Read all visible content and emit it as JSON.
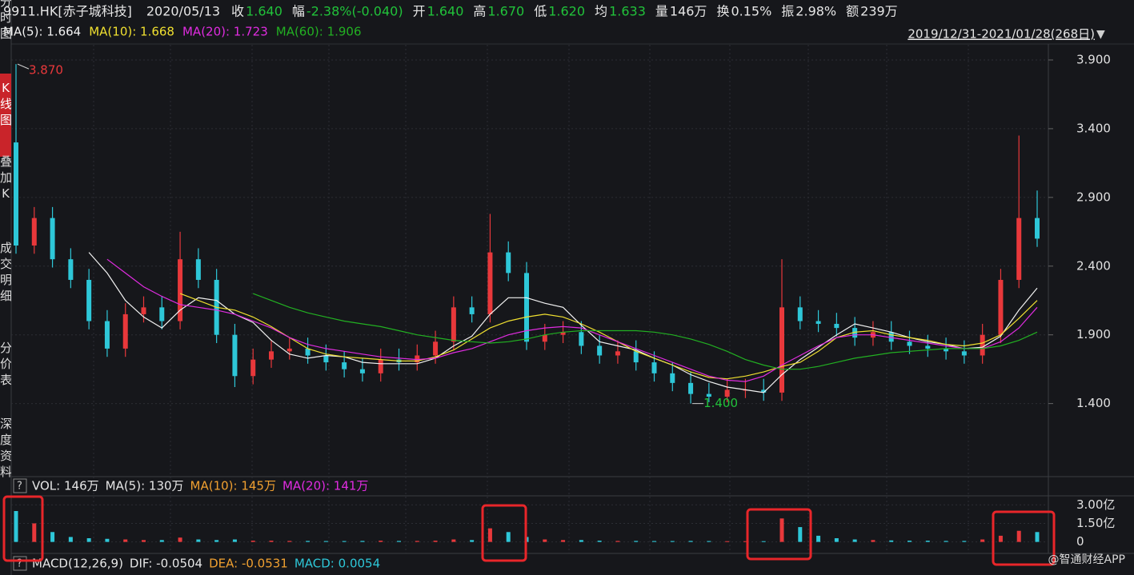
{
  "header": {
    "symbol": "9911.HK[赤子城科技]",
    "date": "2020/05/13",
    "quote": [
      {
        "label": "收",
        "value": "1.640",
        "color": "#21c23a"
      },
      {
        "label": "幅",
        "value": "-2.38%(-0.040)",
        "color": "#21c23a"
      },
      {
        "label": "开",
        "value": "1.640",
        "color": "#21c23a"
      },
      {
        "label": "高",
        "value": "1.670",
        "color": "#21c23a"
      },
      {
        "label": "低",
        "value": "1.620",
        "color": "#21c23a"
      },
      {
        "label": "均",
        "value": "1.633",
        "color": "#21c23a"
      },
      {
        "label": "量",
        "value": "146万",
        "color": "#e6e6e6"
      },
      {
        "label": "换",
        "value": "0.15%",
        "color": "#e6e6e6"
      },
      {
        "label": "振",
        "value": "2.98%",
        "color": "#e6e6e6"
      },
      {
        "label": "额",
        "value": "239万",
        "color": "#e6e6e6"
      }
    ],
    "range": "2019/12/31-2021/01/28(268日)",
    "range_arrow": "▼"
  },
  "sidebar": [
    "分时图",
    "K线图",
    "叠加K",
    "成交明细",
    "分价表",
    "深度资料"
  ],
  "help": "?",
  "watermark": "@智通财经APP",
  "chart_data": [
    {
      "type": "candlestick",
      "up_color": "#e8383b",
      "down_color": "#2ec7d8",
      "open": [
        3.3,
        2.55,
        2.75,
        2.45,
        2.3,
        2.0,
        1.8,
        2.05,
        2.1,
        2.0,
        2.45,
        2.3,
        1.9,
        1.6,
        1.72,
        1.78,
        1.8,
        1.75,
        1.7,
        1.65,
        1.62,
        1.72,
        1.7,
        1.75,
        1.85,
        2.1,
        2.05,
        2.5,
        2.35,
        1.85,
        1.9,
        1.92,
        1.82,
        1.75,
        1.78,
        1.7,
        1.62,
        1.55,
        1.47,
        1.45,
        1.5,
        1.5,
        1.48,
        2.1,
        2.0,
        1.98,
        1.95,
        1.88,
        1.92,
        1.85,
        1.82,
        1.8,
        1.78,
        1.75,
        1.9,
        2.3,
        2.75
      ],
      "high": [
        3.87,
        2.83,
        2.83,
        2.53,
        2.38,
        2.08,
        2.13,
        2.18,
        2.18,
        2.65,
        2.53,
        2.38,
        1.98,
        1.8,
        1.86,
        1.88,
        1.88,
        1.83,
        1.78,
        1.73,
        1.8,
        1.8,
        1.83,
        1.93,
        2.18,
        2.18,
        2.78,
        2.58,
        2.43,
        1.98,
        2.0,
        2.0,
        1.9,
        1.86,
        1.86,
        1.78,
        1.7,
        1.63,
        1.55,
        1.58,
        1.58,
        1.58,
        2.45,
        2.18,
        2.08,
        2.06,
        2.03,
        2.0,
        2.0,
        1.93,
        1.9,
        1.88,
        1.86,
        1.98,
        2.38,
        3.35,
        2.95
      ],
      "low": [
        2.49,
        2.49,
        2.39,
        2.24,
        1.94,
        1.74,
        1.74,
        1.99,
        1.94,
        1.94,
        2.24,
        1.84,
        1.52,
        1.54,
        1.66,
        1.72,
        1.69,
        1.64,
        1.59,
        1.56,
        1.56,
        1.64,
        1.64,
        1.69,
        1.79,
        1.99,
        1.99,
        2.29,
        1.79,
        1.79,
        1.84,
        1.76,
        1.69,
        1.69,
        1.64,
        1.56,
        1.49,
        1.4,
        1.41,
        1.41,
        1.44,
        1.42,
        1.42,
        1.94,
        1.92,
        1.89,
        1.82,
        1.82,
        1.79,
        1.76,
        1.74,
        1.72,
        1.69,
        1.69,
        1.84,
        2.24,
        2.54
      ],
      "close": [
        2.55,
        2.75,
        2.45,
        2.3,
        2.0,
        1.8,
        2.05,
        2.1,
        2.0,
        2.45,
        2.3,
        1.9,
        1.6,
        1.72,
        1.78,
        1.8,
        1.75,
        1.7,
        1.65,
        1.62,
        1.72,
        1.7,
        1.75,
        1.85,
        2.1,
        2.05,
        2.5,
        2.35,
        1.85,
        1.9,
        1.92,
        1.82,
        1.75,
        1.78,
        1.7,
        1.62,
        1.55,
        1.47,
        1.45,
        1.5,
        1.5,
        1.48,
        2.1,
        2.0,
        1.98,
        1.95,
        1.88,
        1.92,
        1.85,
        1.82,
        1.8,
        1.78,
        1.75,
        1.9,
        2.3,
        2.75,
        2.6
      ],
      "series": [
        {
          "name": "MA(5): 1.664",
          "color": "#f2f2f2",
          "values": [
            null,
            null,
            null,
            null,
            2.5,
            2.35,
            2.15,
            2.03,
            1.95,
            2.08,
            2.17,
            2.15,
            2.05,
            1.99,
            1.86,
            1.76,
            1.73,
            1.75,
            1.74,
            1.7,
            1.69,
            1.69,
            1.69,
            1.73,
            1.82,
            1.89,
            2.05,
            2.17,
            2.17,
            2.13,
            2.1,
            1.97,
            1.85,
            1.82,
            1.79,
            1.73,
            1.68,
            1.61,
            1.56,
            1.52,
            1.5,
            1.48,
            1.61,
            1.72,
            1.81,
            1.9,
            1.98,
            1.95,
            1.92,
            1.88,
            1.85,
            1.83,
            1.8,
            1.81,
            1.89,
            2.08,
            2.24
          ]
        },
        {
          "name": "MA(10): 1.668",
          "color": "#f0e030",
          "values": [
            null,
            null,
            null,
            null,
            null,
            null,
            null,
            null,
            null,
            2.2,
            2.15,
            2.1,
            2.08,
            2.03,
            1.96,
            1.88,
            1.8,
            1.76,
            1.74,
            1.73,
            1.72,
            1.71,
            1.71,
            1.74,
            1.79,
            1.87,
            1.95,
            2.0,
            2.03,
            2.05,
            2.03,
            1.98,
            1.92,
            1.85,
            1.78,
            1.73,
            1.68,
            1.63,
            1.59,
            1.58,
            1.6,
            1.63,
            1.67,
            1.7,
            1.78,
            1.88,
            1.92,
            1.93,
            1.9,
            1.88,
            1.86,
            1.83,
            1.82,
            1.84,
            1.9,
            2.02,
            2.15
          ]
        },
        {
          "name": "MA(20): 1.723",
          "color": "#e02ce0",
          "values": [
            null,
            null,
            null,
            null,
            null,
            2.45,
            2.35,
            2.25,
            2.18,
            2.12,
            2.1,
            2.08,
            2.05,
            2.0,
            1.95,
            1.88,
            1.83,
            1.8,
            1.78,
            1.76,
            1.74,
            1.73,
            1.72,
            1.73,
            1.77,
            1.8,
            1.85,
            1.9,
            1.93,
            1.95,
            1.96,
            1.95,
            1.9,
            1.85,
            1.8,
            1.75,
            1.7,
            1.65,
            1.6,
            1.57,
            1.56,
            1.6,
            1.68,
            1.75,
            1.82,
            1.88,
            1.9,
            1.9,
            1.88,
            1.86,
            1.84,
            1.82,
            1.8,
            1.8,
            1.85,
            1.95,
            2.1
          ]
        },
        {
          "name": "MA(60): 1.906",
          "color": "#22b022",
          "values": [
            null,
            null,
            null,
            null,
            null,
            null,
            null,
            null,
            null,
            null,
            null,
            null,
            null,
            2.2,
            2.15,
            2.1,
            2.06,
            2.03,
            2.0,
            1.98,
            1.96,
            1.93,
            1.9,
            1.88,
            1.86,
            1.85,
            1.84,
            1.85,
            1.87,
            1.9,
            1.92,
            1.93,
            1.93,
            1.93,
            1.93,
            1.92,
            1.9,
            1.87,
            1.83,
            1.78,
            1.72,
            1.68,
            1.65,
            1.65,
            1.67,
            1.7,
            1.73,
            1.75,
            1.77,
            1.78,
            1.79,
            1.8,
            1.8,
            1.8,
            1.82,
            1.86,
            1.92
          ]
        }
      ],
      "annotations": [
        {
          "value": 3.87,
          "label": "3.870",
          "color": "#e8383b"
        },
        {
          "value": 1.4,
          "label": "1.400",
          "color": "#21c23a"
        }
      ],
      "ylim": [
        0.88,
        4.0
      ],
      "yticks": [
        {
          "value": 1.4,
          "label": "1.400"
        },
        {
          "value": 1.9,
          "label": "1.900"
        },
        {
          "value": 2.4,
          "label": "2.400"
        },
        {
          "value": 2.9,
          "label": "2.900"
        },
        {
          "value": 3.4,
          "label": "3.400"
        },
        {
          "value": 3.9,
          "label": "3.900"
        }
      ],
      "grid": true
    },
    {
      "type": "bar",
      "values": [
        2.5,
        1.5,
        0.8,
        0.4,
        0.3,
        0.25,
        0.2,
        0.15,
        0.15,
        0.35,
        0.2,
        0.15,
        0.2,
        0.1,
        0.1,
        0.08,
        0.08,
        0.07,
        0.07,
        0.08,
        0.1,
        0.08,
        0.08,
        0.1,
        0.2,
        0.15,
        1.1,
        0.8,
        0.4,
        0.2,
        0.15,
        0.15,
        0.1,
        0.08,
        0.08,
        0.07,
        0.07,
        0.08,
        0.07,
        0.06,
        0.06,
        0.06,
        1.9,
        1.2,
        0.5,
        0.3,
        0.2,
        0.15,
        0.12,
        0.1,
        0.1,
        0.08,
        0.08,
        0.2,
        0.5,
        0.9,
        0.8
      ],
      "legend": [
        {
          "name": "VOL: 146万",
          "color": "#e6e6e6"
        },
        {
          "name": "MA(5): 130万",
          "color": "#e6e6e6"
        },
        {
          "name": "MA(10): 145万",
          "color": "#f0a030"
        },
        {
          "name": "MA(20): 141万",
          "color": "#e02ce0"
        }
      ],
      "ylim": [
        -0.8,
        3.6
      ],
      "yticks": [
        {
          "value": 0,
          "label": "0"
        },
        {
          "value": 1.5,
          "label": "1.50亿"
        },
        {
          "value": 3,
          "label": "3.00亿"
        }
      ]
    },
    {
      "type": "macd",
      "legend": [
        {
          "name": "MACD(12,26,9)",
          "color": "#e6e6e6"
        },
        {
          "name": "DIF: -0.0504",
          "color": "#e6e6e6"
        },
        {
          "name": "DEA: -0.0531",
          "color": "#f0a030"
        },
        {
          "name": "MACD: 0.0054",
          "color": "#2ec7d8"
        }
      ]
    }
  ]
}
